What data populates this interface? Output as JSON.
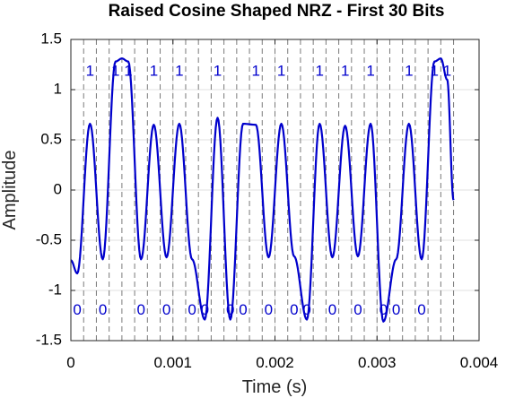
{
  "chart_data": {
    "type": "line",
    "title": "Raised Cosine Shaped NRZ - First 30 Bits",
    "xlabel": "Time (s)",
    "ylabel": "Amplitude",
    "xlim": [
      0,
      0.004
    ],
    "ylim": [
      -1.5,
      1.5
    ],
    "xticks": [
      0,
      0.001,
      0.002,
      0.003,
      0.004
    ],
    "xtick_labels": [
      "0",
      "0.001",
      "0.002",
      "0.003",
      "0.004"
    ],
    "yticks": [
      -1.5,
      -1,
      -0.5,
      0,
      0.5,
      1,
      1.5
    ],
    "ytick_labels": [
      "-1.5",
      "-1",
      "-0.5",
      "0",
      "0.5",
      "1",
      "1.5"
    ],
    "grid": true,
    "line_color": "#0000cc",
    "label_color": "#0000cc",
    "bit_period": 0.000125,
    "bits": [
      0,
      1,
      0,
      1,
      1,
      0,
      1,
      0,
      1,
      0,
      0,
      1,
      0,
      0,
      1,
      0,
      1,
      0,
      0,
      1,
      0,
      1,
      0,
      1,
      0,
      0,
      1,
      0,
      1,
      1
    ],
    "series": [
      {
        "x": [
          0,
          6.25e-05,
          0.0001875,
          0.0003125,
          0.0004375,
          0.0005,
          0.0005625,
          0.0006875,
          0.0008125,
          0.0009375,
          0.0010625,
          0.0011875,
          0.0013125,
          0.0014375,
          0.0015625,
          0.0016875,
          0.0018125,
          0.0019375,
          0.0020625,
          0.0021875,
          0.0023125,
          0.0024375,
          0.0025625,
          0.0026875,
          0.0028125,
          0.0029375,
          0.0030625,
          0.0031875,
          0.0033125,
          0.0034375,
          0.0035625,
          0.003625,
          0.0036875,
          0.00375
        ],
        "y": [
          -0.7,
          -0.83,
          0.66,
          -0.69,
          1.28,
          1.31,
          1.28,
          -0.69,
          0.65,
          -0.67,
          0.66,
          -0.69,
          -1.29,
          0.72,
          -1.29,
          0.66,
          0.65,
          -0.67,
          0.66,
          -0.66,
          -1.29,
          0.66,
          -0.67,
          0.64,
          -0.66,
          0.66,
          -1.31,
          -0.69,
          0.66,
          -0.69,
          1.28,
          1.31,
          1.1,
          -0.1
        ]
      }
    ]
  }
}
